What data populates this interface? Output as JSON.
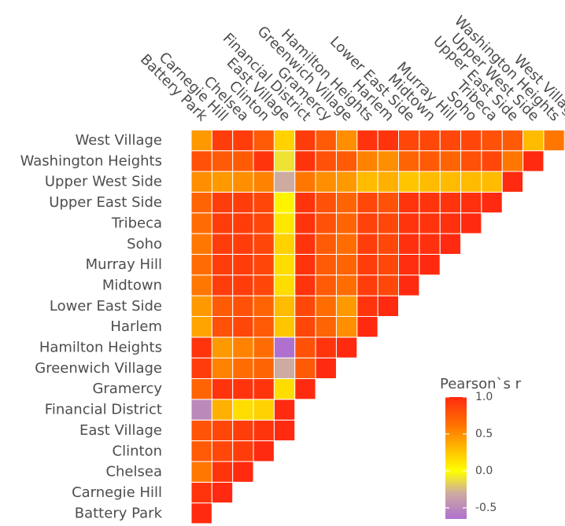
{
  "chart_data": {
    "type": "heatmap",
    "title": "",
    "xlabel": "",
    "ylabel": "",
    "x_categories": [
      "Battery Park",
      "Carnegie Hill",
      "Chelsea",
      "Clinton",
      "East Village",
      "Financial District",
      "Gramercy",
      "Greenwich Village",
      "Hamilton Heights",
      "Harlem",
      "Lower East Side",
      "Midtown",
      "Murray Hill",
      "Soho",
      "Tribeca",
      "Upper East Side",
      "Upper West Side",
      "Washington Heights",
      "West Village"
    ],
    "y_categories": [
      "Battery Park",
      "Carnegie Hill",
      "Chelsea",
      "Clinton",
      "East Village",
      "Financial District",
      "Gramercy",
      "Greenwich Village",
      "Hamilton Heights",
      "Harlem",
      "Lower East Side",
      "Midtown",
      "Murray Hill",
      "Soho",
      "Tribeca",
      "Upper East Side",
      "Upper West Side",
      "Washington Heights",
      "West Village"
    ],
    "values": [
      [
        1.0
      ],
      [
        0.95,
        1.0
      ],
      [
        0.6,
        0.95,
        1.0
      ],
      [
        0.75,
        0.85,
        0.9,
        1.0
      ],
      [
        0.78,
        0.85,
        0.9,
        0.95,
        1.0
      ],
      [
        -0.5,
        0.35,
        0.15,
        0.2,
        1.0
      ],
      [
        0.7,
        0.95,
        0.95,
        0.95,
        0.15,
        1.0
      ],
      [
        0.9,
        0.55,
        0.65,
        0.7,
        -0.3,
        0.75,
        1.0
      ],
      [
        0.95,
        0.45,
        0.55,
        0.65,
        -0.65,
        0.8,
        0.95,
        1.0
      ],
      [
        0.4,
        0.8,
        0.85,
        0.75,
        0.25,
        0.85,
        0.7,
        0.5,
        1.0
      ],
      [
        0.45,
        0.75,
        0.8,
        0.7,
        0.3,
        0.85,
        0.65,
        0.45,
        0.95,
        1.0
      ],
      [
        0.6,
        0.9,
        0.9,
        0.85,
        0.15,
        0.95,
        0.75,
        0.65,
        0.9,
        0.85,
        1.0
      ],
      [
        0.65,
        0.9,
        0.9,
        0.85,
        0.15,
        0.95,
        0.75,
        0.7,
        0.9,
        0.85,
        0.98,
        1.0
      ],
      [
        0.6,
        0.9,
        0.9,
        0.85,
        0.2,
        0.95,
        0.75,
        0.65,
        0.9,
        0.85,
        0.97,
        0.97,
        1.0
      ],
      [
        0.65,
        0.9,
        0.9,
        0.85,
        0.1,
        0.95,
        0.8,
        0.7,
        0.88,
        0.85,
        0.95,
        0.95,
        0.97,
        1.0
      ],
      [
        0.7,
        0.9,
        0.9,
        0.85,
        0.05,
        0.95,
        0.8,
        0.7,
        0.85,
        0.8,
        0.95,
        0.95,
        0.95,
        0.97,
        1.0
      ],
      [
        0.5,
        0.45,
        0.5,
        0.55,
        -0.3,
        0.6,
        0.5,
        0.45,
        0.3,
        0.35,
        0.25,
        0.3,
        0.3,
        0.3,
        0.3,
        1.0
      ],
      [
        0.8,
        0.75,
        0.75,
        0.95,
        -0.1,
        0.95,
        0.8,
        0.75,
        0.55,
        0.5,
        0.7,
        0.75,
        0.7,
        0.8,
        0.85,
        0.6,
        1.0
      ],
      [
        0.45,
        0.9,
        0.9,
        0.75,
        0.2,
        0.9,
        0.75,
        0.5,
        0.95,
        0.95,
        0.85,
        0.85,
        0.85,
        0.85,
        0.8,
        0.75,
        0.3,
        0.6,
        1.0
      ]
    ],
    "color_scale": {
      "title": "Pearson`s r",
      "ticks": [
        "1.0",
        "0.5",
        "0.0",
        "-0.5"
      ],
      "tick_values": [
        1.0,
        0.5,
        0.0,
        -0.5
      ],
      "range": [
        -0.65,
        1.0
      ],
      "colors": [
        {
          "v": -0.65,
          "c": "#b070d0"
        },
        {
          "v": -0.3,
          "c": "#cdaba0"
        },
        {
          "v": 0.0,
          "c": "#ffff00"
        },
        {
          "v": 0.3,
          "c": "#ffbb00"
        },
        {
          "v": 0.6,
          "c": "#ff7700"
        },
        {
          "v": 1.0,
          "c": "#ff2a0f"
        }
      ]
    },
    "legend_position": "bottom-right",
    "grid": false
  }
}
